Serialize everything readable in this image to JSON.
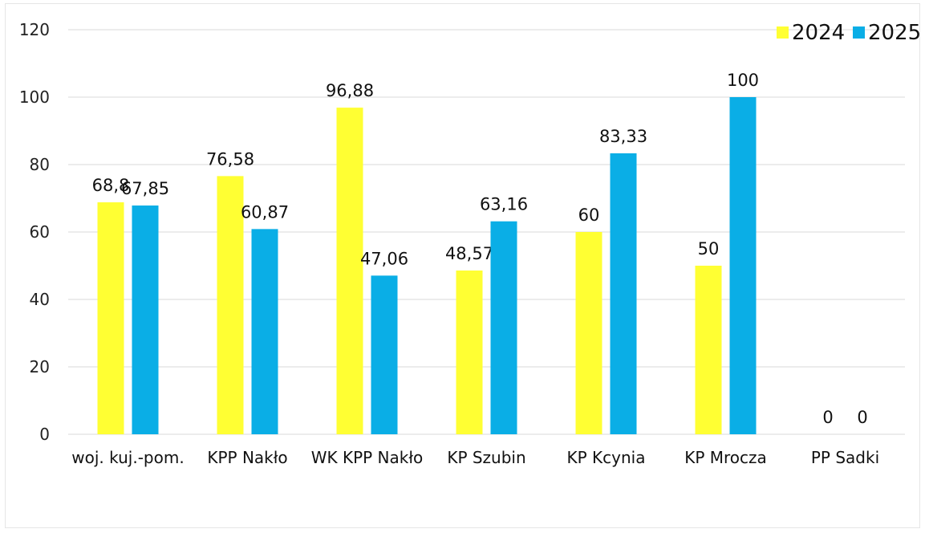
{
  "chart_data": {
    "type": "bar",
    "title": "",
    "xlabel": "",
    "ylabel": "",
    "ylim": [
      0,
      120
    ],
    "yticks": [
      0,
      20,
      40,
      60,
      80,
      100,
      120
    ],
    "grid": true,
    "legend_position": "top-right",
    "categories": [
      "woj. kuj.-pom.",
      "KPP Nakło",
      "WK KPP Nakło",
      "KP Szubin",
      "KP Kcynia",
      "KP Mrocza",
      "PP Sadki"
    ],
    "series": [
      {
        "name": "2024",
        "color": "#ffff33",
        "values": [
          68.8,
          76.58,
          96.88,
          48.57,
          60,
          50,
          0
        ],
        "labels": [
          "68,8",
          "76,58",
          "96,88",
          "48,57",
          "60",
          "50",
          "0"
        ]
      },
      {
        "name": "2025",
        "color": "#0aaee6",
        "values": [
          67.85,
          60.87,
          47.06,
          63.16,
          83.33,
          100,
          0
        ],
        "labels": [
          "67,85",
          "60,87",
          "47,06",
          "63,16",
          "83,33",
          "100",
          "0"
        ]
      }
    ]
  }
}
